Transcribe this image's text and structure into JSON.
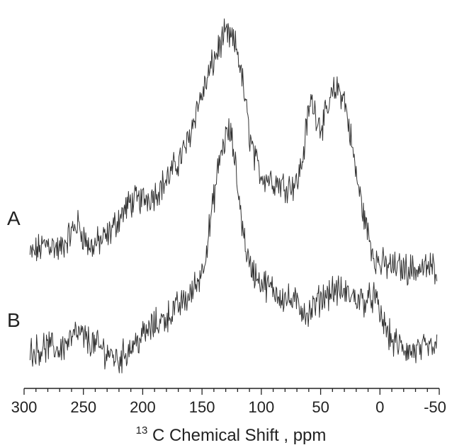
{
  "chart_data": {
    "type": "line",
    "title": "",
    "xlabel": {
      "superscript": "13",
      "text": "C Chemical Shift , ppm"
    },
    "ylabel": "",
    "xlim": [
      300,
      -50
    ],
    "x_reversed": true,
    "x_ticks": [
      "300",
      "250",
      "200",
      "150",
      "100",
      "50",
      "0",
      "-50"
    ],
    "y_axis_shown": false,
    "grid": false,
    "legend": "none",
    "line_color": "#333333",
    "series": [
      {
        "label": "A",
        "points": [
          [
            295,
            0.1
          ],
          [
            280,
            0.15
          ],
          [
            270,
            0.12
          ],
          [
            255,
            0.22
          ],
          [
            245,
            0.13
          ],
          [
            230,
            0.17
          ],
          [
            220,
            0.24
          ],
          [
            210,
            0.3
          ],
          [
            200,
            0.31
          ],
          [
            190,
            0.33
          ],
          [
            180,
            0.38
          ],
          [
            170,
            0.45
          ],
          [
            162,
            0.52
          ],
          [
            155,
            0.64
          ],
          [
            148,
            0.72
          ],
          [
            142,
            0.8
          ],
          [
            135,
            0.88
          ],
          [
            130,
            0.92
          ],
          [
            125,
            0.9
          ],
          [
            120,
            0.86
          ],
          [
            115,
            0.72
          ],
          [
            110,
            0.55
          ],
          [
            105,
            0.45
          ],
          [
            100,
            0.4
          ],
          [
            90,
            0.38
          ],
          [
            80,
            0.36
          ],
          [
            70,
            0.37
          ],
          [
            65,
            0.46
          ],
          [
            62,
            0.58
          ],
          [
            58,
            0.68
          ],
          [
            55,
            0.64
          ],
          [
            50,
            0.58
          ],
          [
            45,
            0.62
          ],
          [
            40,
            0.7
          ],
          [
            35,
            0.72
          ],
          [
            30,
            0.68
          ],
          [
            25,
            0.55
          ],
          [
            20,
            0.4
          ],
          [
            15,
            0.28
          ],
          [
            10,
            0.18
          ],
          [
            5,
            0.1
          ],
          [
            0,
            0.07
          ],
          [
            -10,
            0.06
          ],
          [
            -30,
            0.05
          ],
          [
            -48,
            0.06
          ]
        ]
      },
      {
        "label": "B",
        "points": [
          [
            295,
            0.08
          ],
          [
            280,
            0.1
          ],
          [
            270,
            0.09
          ],
          [
            255,
            0.15
          ],
          [
            245,
            0.12
          ],
          [
            230,
            0.08
          ],
          [
            220,
            0.05
          ],
          [
            210,
            0.1
          ],
          [
            200,
            0.14
          ],
          [
            190,
            0.18
          ],
          [
            180,
            0.21
          ],
          [
            170,
            0.25
          ],
          [
            160,
            0.29
          ],
          [
            150,
            0.38
          ],
          [
            145,
            0.5
          ],
          [
            140,
            0.65
          ],
          [
            135,
            0.8
          ],
          [
            130,
            0.88
          ],
          [
            127,
            0.9
          ],
          [
            124,
            0.85
          ],
          [
            120,
            0.7
          ],
          [
            115,
            0.52
          ],
          [
            110,
            0.4
          ],
          [
            100,
            0.34
          ],
          [
            90,
            0.31
          ],
          [
            80,
            0.28
          ],
          [
            70,
            0.26
          ],
          [
            60,
            0.22
          ],
          [
            50,
            0.28
          ],
          [
            40,
            0.31
          ],
          [
            30,
            0.3
          ],
          [
            20,
            0.28
          ],
          [
            10,
            0.27
          ],
          [
            5,
            0.29
          ],
          [
            0,
            0.22
          ],
          [
            -10,
            0.12
          ],
          [
            -25,
            0.08
          ],
          [
            -40,
            0.09
          ],
          [
            -48,
            0.1
          ]
        ]
      }
    ]
  }
}
